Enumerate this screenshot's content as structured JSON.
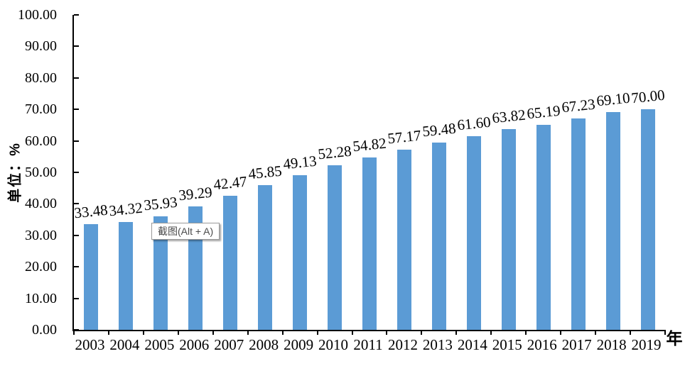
{
  "chart_data": {
    "type": "bar",
    "title": "",
    "categories": [
      "2003",
      "2004",
      "2005",
      "2006",
      "2007",
      "2008",
      "2009",
      "2010",
      "2011",
      "2012",
      "2013",
      "2014",
      "2015",
      "2016",
      "2017",
      "2018",
      "2019"
    ],
    "values": [
      33.48,
      34.32,
      35.93,
      39.29,
      42.47,
      45.85,
      49.13,
      52.28,
      54.82,
      57.17,
      59.48,
      61.6,
      63.82,
      65.19,
      67.23,
      69.1,
      70.0
    ],
    "data_labels": [
      "33.48",
      "34.32",
      "35.93",
      "39.29",
      "42.47",
      "45.85",
      "49.13",
      "52.28",
      "54.82",
      "57.17",
      "59.48",
      "61.60",
      "63.82",
      "65.19",
      "67.23",
      "69.10",
      "70.00"
    ],
    "xlabel": "年",
    "ylabel": "单位：%",
    "ylim": [
      0,
      100
    ],
    "ytick_labels": [
      "100.00",
      "90.00",
      "80.00",
      "70.00",
      "60.00",
      "50.00",
      "40.00",
      "30.00",
      "20.00",
      "10.00",
      "0.00"
    ],
    "bar_color": "#5B9BD5",
    "grid": false,
    "legend": false,
    "axis_color": "#000000"
  },
  "overlay_tooltip": {
    "text": "截图(Alt + A)"
  }
}
